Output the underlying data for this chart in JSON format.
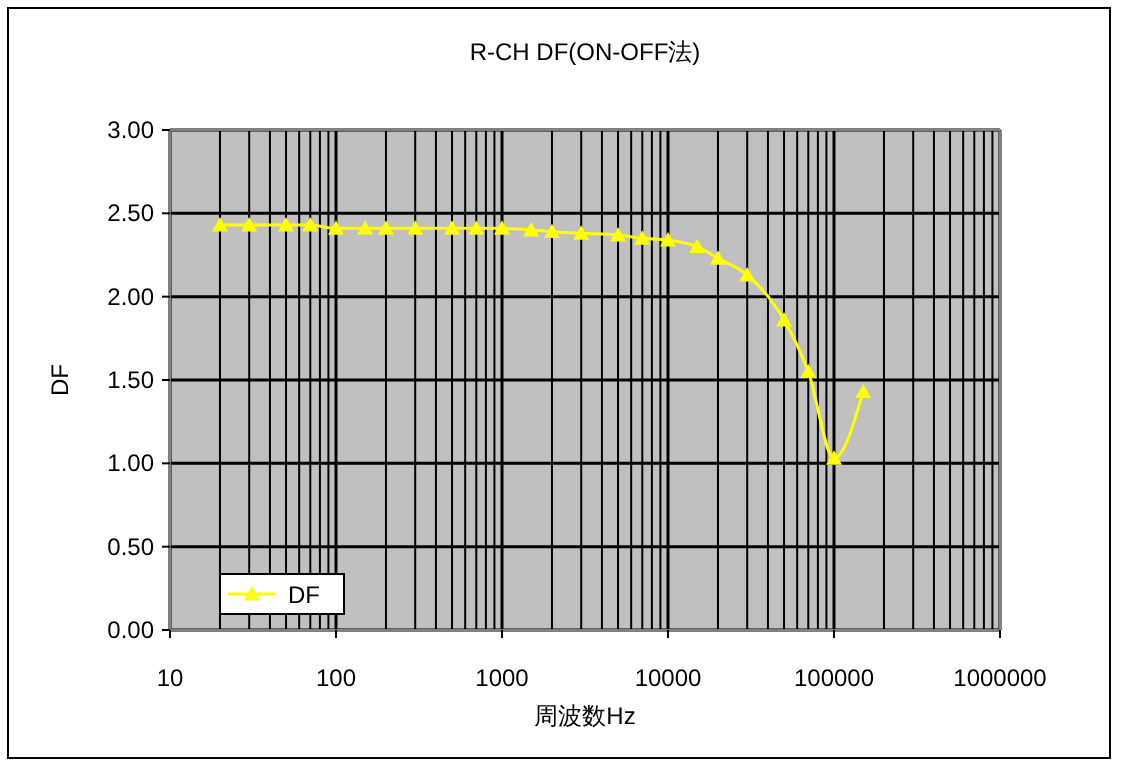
{
  "chart_data": {
    "type": "line",
    "title": "R-CH DF(ON-OFF法)",
    "xlabel": "周波数Hz",
    "ylabel": "DF",
    "log": "x",
    "x": [
      20,
      30,
      50,
      70,
      100,
      150,
      200,
      300,
      500,
      700,
      1000,
      1500,
      2000,
      3000,
      5000,
      7000,
      10000,
      15000,
      20000,
      30000,
      50000,
      70000,
      100000,
      150000
    ],
    "series": [
      {
        "name": "DF",
        "color": "#ffff00",
        "values": [
          2.43,
          2.43,
          2.43,
          2.43,
          2.41,
          2.41,
          2.41,
          2.41,
          2.41,
          2.41,
          2.41,
          2.4,
          2.39,
          2.38,
          2.37,
          2.35,
          2.34,
          2.3,
          2.23,
          2.13,
          1.86,
          1.55,
          1.03,
          1.43
        ]
      }
    ],
    "xlim": [
      10,
      1000000
    ],
    "xticks": [
      10,
      100,
      1000,
      10000,
      100000,
      1000000
    ],
    "ylim": [
      0,
      3
    ],
    "yticks": [
      {
        "value": 0,
        "label": "0.00"
      },
      {
        "value": 0.5,
        "label": "0.50"
      },
      {
        "value": 1,
        "label": "1.00"
      },
      {
        "value": 1.5,
        "label": "1.50"
      },
      {
        "value": 2,
        "label": "2.00"
      },
      {
        "value": 2.5,
        "label": "2.50"
      },
      {
        "value": 3,
        "label": "3.00"
      }
    ],
    "grid": true,
    "legend": "bottom left",
    "marker": "triangle",
    "line_style": "solid"
  }
}
